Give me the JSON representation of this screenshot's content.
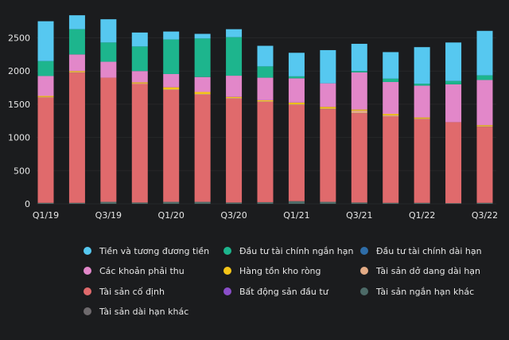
{
  "chart_data": {
    "type": "bar",
    "stacked": true,
    "categories": [
      "Q1/19",
      "Q2/19",
      "Q3/19",
      "Q4/19",
      "Q1/20",
      "Q2/20",
      "Q3/20",
      "Q4/20",
      "Q1/21",
      "Q2/21",
      "Q3/21",
      "Q4/21",
      "Q1/22",
      "Q2/22",
      "Q3/22"
    ],
    "x_tick_labels": [
      "Q1/19",
      "Q3/19",
      "Q1/20",
      "Q3/20",
      "Q1/21",
      "Q3/21",
      "Q1/22",
      "Q3/22"
    ],
    "y_ticks": [
      0,
      500,
      1000,
      1500,
      2000,
      2500
    ],
    "ylim": [
      0,
      2830
    ],
    "title": "",
    "xlabel": "",
    "ylabel": "",
    "grid": true,
    "legend_position": "bottom",
    "series": [
      {
        "name": "Tài sản dài hạn khác",
        "color": "#6e6a6d",
        "values": [
          0,
          0,
          0,
          0,
          0,
          0,
          0,
          0,
          0,
          0,
          0,
          0,
          0,
          0,
          0
        ]
      },
      {
        "name": "Tài sản ngắn hạn khác",
        "color": "#4d6b68",
        "values": [
          15,
          15,
          30,
          20,
          30,
          30,
          20,
          25,
          40,
          30,
          20,
          15,
          15,
          10,
          15
        ]
      },
      {
        "name": "Bất động sản đầu tư",
        "color": "#8a4ec9",
        "values": [
          0,
          0,
          0,
          0,
          0,
          0,
          0,
          0,
          0,
          0,
          0,
          0,
          0,
          0,
          0
        ]
      },
      {
        "name": "Tài sản cố định",
        "color": "#e06a6c",
        "values": [
          1585,
          1960,
          1870,
          1785,
          1685,
          1615,
          1565,
          1510,
          1450,
          1395,
          1345,
          1300,
          1260,
          1220,
          1145
        ]
      },
      {
        "name": "Tài sản dở dang dài hạn",
        "color": "#e3ab85",
        "values": [
          10,
          10,
          0,
          10,
          10,
          10,
          10,
          10,
          10,
          10,
          40,
          20,
          10,
          0,
          10
        ]
      },
      {
        "name": "Hàng tồn kho ròng",
        "color": "#f5c518",
        "values": [
          15,
          15,
          0,
          15,
          30,
          30,
          15,
          15,
          25,
          25,
          15,
          20,
          15,
          0,
          15
        ]
      },
      {
        "name": "Các khoản phải thu",
        "color": "#e287c9",
        "values": [
          300,
          250,
          240,
          170,
          200,
          225,
          320,
          340,
          365,
          355,
          560,
          480,
          480,
          570,
          680
        ]
      },
      {
        "name": "Đầu tư tài chính dài hạn",
        "color": "#2e6da8",
        "values": [
          0,
          0,
          0,
          0,
          0,
          0,
          0,
          0,
          0,
          0,
          0,
          0,
          0,
          0,
          0
        ]
      },
      {
        "name": "Đầu tư tài chính ngắn hạn",
        "color": "#1db58d",
        "values": [
          225,
          380,
          290,
          370,
          520,
          580,
          580,
          170,
          30,
          0,
          20,
          50,
          30,
          50,
          70
        ]
      },
      {
        "name": "Tiền và tương đương tiền",
        "color": "#56c8f0",
        "values": [
          600,
          210,
          350,
          210,
          120,
          70,
          120,
          310,
          355,
          500,
          410,
          400,
          550,
          580,
          670
        ]
      }
    ],
    "legend_entries": [
      {
        "label": "Tiền và tương đương tiền",
        "color": "#56c8f0"
      },
      {
        "label": "Đầu tư tài chính ngắn hạn",
        "color": "#1db58d"
      },
      {
        "label": "Đầu tư tài chính dài hạn",
        "color": "#2e6da8"
      },
      {
        "label": "Các khoản phải thu",
        "color": "#e287c9"
      },
      {
        "label": "Hàng tồn kho ròng",
        "color": "#f5c518"
      },
      {
        "label": "Tài sản dở dang dài hạn",
        "color": "#e3ab85"
      },
      {
        "label": "Tài sản cố định",
        "color": "#e06a6c"
      },
      {
        "label": "Bất động sản đầu tư",
        "color": "#8a4ec9"
      },
      {
        "label": "Tài sản ngắn hạn khác",
        "color": "#4d6b68"
      },
      {
        "label": "Tài sản dài hạn khác",
        "color": "#6e6a6d"
      }
    ]
  }
}
